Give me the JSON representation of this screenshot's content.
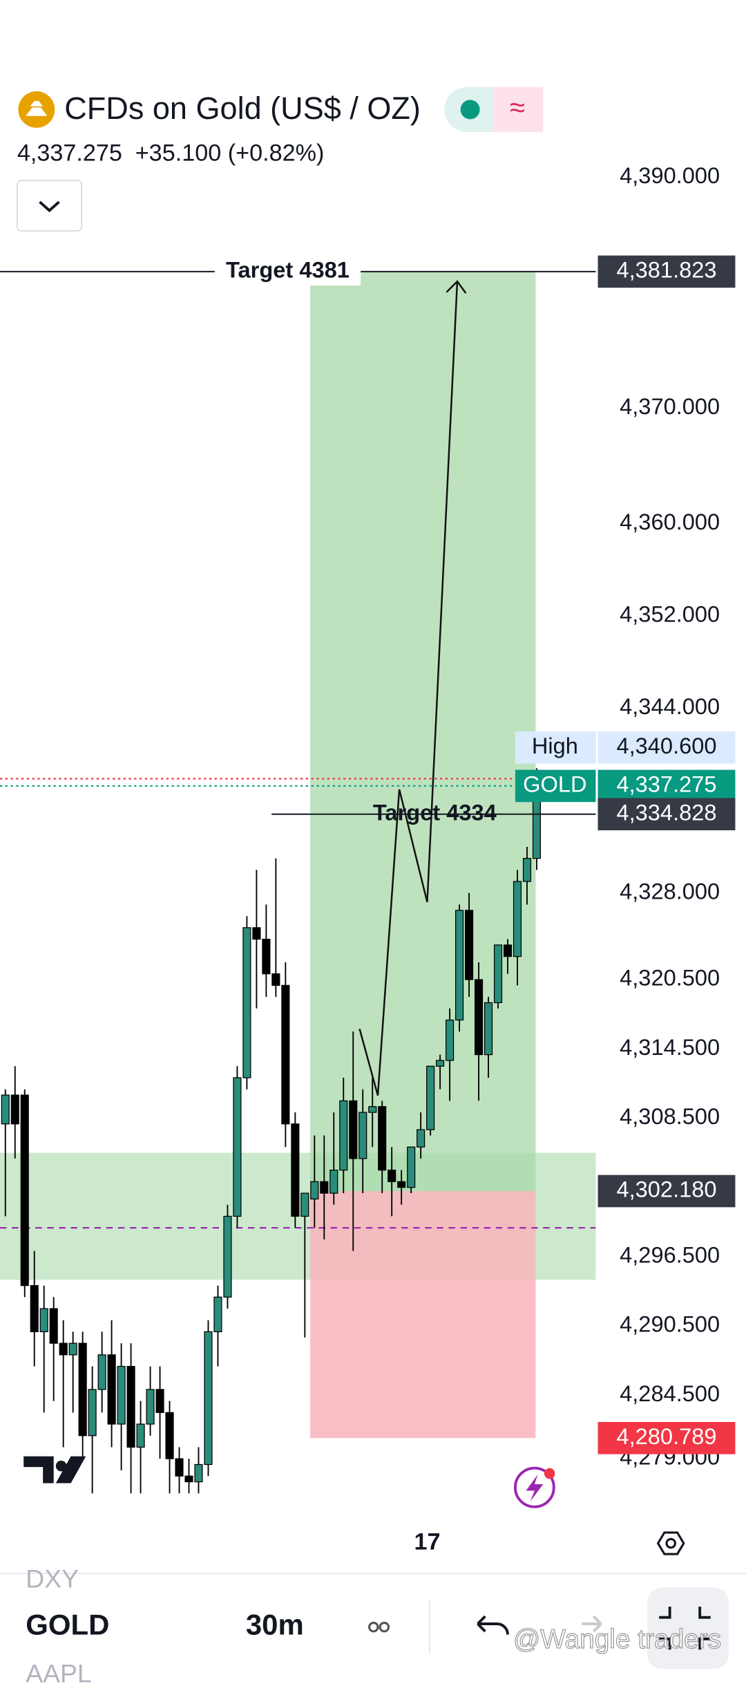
{
  "header": {
    "symbol": "CFDs on Gold (US$ / OZ)",
    "price": "4,337.275",
    "change": "+35.100",
    "change_pct": "(+0.82%)"
  },
  "chart_data": {
    "type": "candlestick",
    "categories": [
      null,
      null,
      null,
      null,
      null,
      null,
      null,
      null,
      null,
      null,
      null,
      null,
      null,
      null,
      null,
      null,
      null,
      null,
      null,
      null,
      null,
      null,
      null,
      null,
      null,
      null,
      null,
      null,
      null,
      null,
      null,
      null,
      null,
      null,
      null,
      null,
      null,
      null,
      null,
      null,
      null,
      null,
      null,
      "17",
      null,
      null,
      null,
      null,
      null,
      null,
      null,
      null,
      null,
      null,
      null,
      null
    ],
    "open": [
      4308,
      4310.5,
      4310.5,
      4294,
      4290,
      4292,
      4289,
      4288,
      4289,
      4281,
      4285,
      4288,
      4282,
      4287,
      4280,
      4282,
      4285,
      4283,
      4279,
      4277.5,
      4277,
      4278.5,
      4290,
      4293,
      4300,
      4312,
      4325,
      4324,
      4321,
      4320,
      4308,
      4300,
      4301.5,
      4303,
      4302,
      4304,
      4310,
      4305,
      4309,
      4309.5,
      4304,
      4303,
      4302.5,
      4306,
      4307.5,
      4313,
      4313.5,
      4317,
      4326.5,
      4320.5,
      4314,
      4318.5,
      4323.5,
      4322.5,
      4329,
      4331
    ],
    "high": [
      4311,
      4313,
      4311,
      4297,
      4294,
      4293,
      4291,
      4290,
      4290,
      4287,
      4290,
      4291,
      4289,
      4289,
      4284,
      4287,
      4287,
      4284,
      4280,
      4279,
      4280,
      4291,
      4294,
      4301,
      4313,
      4326,
      4330,
      4327,
      4331,
      4322,
      4309,
      4302,
      4307,
      4307,
      4309,
      4312,
      4316,
      4311,
      4312,
      4310,
      4306,
      4304,
      4306,
      4309,
      4313,
      4314,
      4318,
      4327,
      4328,
      4322,
      4319,
      4323,
      4324,
      4330,
      4332,
      4338.8
    ],
    "low": [
      4300,
      4305,
      4293,
      4287,
      4283,
      4284,
      4280,
      4283,
      4279,
      4276,
      4283,
      4280,
      4278,
      4276,
      4276,
      4281,
      4279,
      4276,
      4276,
      4276,
      4276,
      4277.5,
      4287,
      4292,
      4299,
      4311,
      4318,
      4319,
      4319,
      4306,
      4299,
      4289.5,
      4299,
      4298,
      4301,
      4302,
      4297,
      4302,
      4306,
      4302,
      4300,
      4301,
      4302,
      4305,
      4307,
      4311,
      4310,
      4316,
      4319,
      4310,
      4312,
      4318,
      4321,
      4320,
      4327,
      4330
    ],
    "close": [
      4310.5,
      4308,
      4294,
      4290,
      4292,
      4289,
      4288,
      4289,
      4281,
      4285,
      4288,
      4282,
      4287,
      4280,
      4282,
      4285,
      4283,
      4279,
      4277.5,
      4277,
      4278.5,
      4290,
      4293,
      4300,
      4312,
      4325,
      4324,
      4321,
      4320,
      4308,
      4300,
      4302,
      4303,
      4302,
      4304,
      4310,
      4305,
      4309,
      4309.5,
      4304,
      4303,
      4302.5,
      4306,
      4307.5,
      4313,
      4313.5,
      4317,
      4326.5,
      4320.5,
      4314,
      4318.5,
      4323.5,
      4322.5,
      4329,
      4331,
      4337.275
    ],
    "up_color": "#2a8c7a",
    "down_color": "#000000",
    "ylim": [
      4273,
      4405
    ],
    "yticks": [
      {
        "value": 4390,
        "label": "4,390.000"
      },
      {
        "value": 4370,
        "label": "4,370.000"
      },
      {
        "value": 4360,
        "label": "4,360.000"
      },
      {
        "value": 4352,
        "label": "4,352.000"
      },
      {
        "value": 4344,
        "label": "4,344.000"
      },
      {
        "value": 4328,
        "label": "4,328.000"
      },
      {
        "value": 4320.5,
        "label": "4,320.500"
      },
      {
        "value": 4314.5,
        "label": "4,314.500"
      },
      {
        "value": 4308.5,
        "label": "4,308.500"
      },
      {
        "value": 4296.5,
        "label": "4,296.500"
      },
      {
        "value": 4290.5,
        "label": "4,290.500"
      },
      {
        "value": 4284.5,
        "label": "4,284.500"
      },
      {
        "value": 4279,
        "label": "4,279.000"
      }
    ],
    "position": {
      "target": 4381.823,
      "entry": 4302.18,
      "stop": 4280.789,
      "profit_color": "#a8d8a8",
      "loss_color": "#f9b4bc"
    },
    "zone": {
      "low": 4294.5,
      "high": 4305.5,
      "color": "#bfe3c0"
    },
    "dashed_line": {
      "value": 4299,
      "color": "#9c27b0"
    },
    "reference_lines": [
      {
        "value": 4337.9,
        "color": "#f23645"
      },
      {
        "value": 4337.275,
        "color": "#089981"
      }
    ],
    "annotations": [
      {
        "text": "Target 4381",
        "value": 4381.823
      },
      {
        "text": "Target 4334",
        "value": 4334.828
      }
    ],
    "price_labels": [
      {
        "value": 4381.823,
        "label": "4,381.823",
        "color": "#363a45"
      },
      {
        "name": "High",
        "value": 4340.6,
        "label": "4,340.600",
        "color": "#dbeafe"
      },
      {
        "name": "GOLD",
        "value": 4337.275,
        "label": "4,337.275",
        "color": "#089981"
      },
      {
        "value": 4334.828,
        "label": "4,334.828",
        "color": "#363a45"
      },
      {
        "value": 4302.18,
        "label": "4,302.180",
        "color": "#363a45"
      },
      {
        "value": 4280.789,
        "label": "4,280.789",
        "color": "#f23645"
      }
    ]
  },
  "bottom_bar": {
    "prev_symbol": "DXY",
    "symbol": "GOLD",
    "interval": "30m",
    "next_symbol": "AAPL",
    "watermark": "@Wangle traders"
  }
}
